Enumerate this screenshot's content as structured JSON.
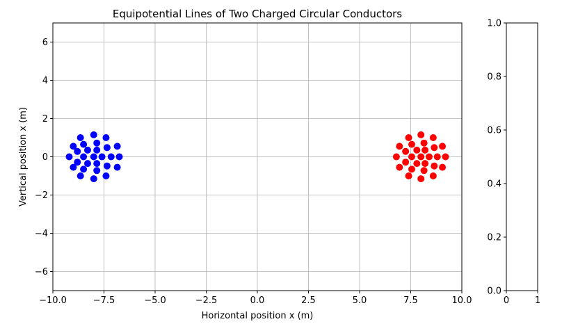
{
  "chart_data": [
    {
      "type": "scatter",
      "title": "Equipotential Lines of Two Charged Circular Conductors",
      "xlabel": "Horizontal position x (m)",
      "ylabel": "Vertical position x (m)",
      "xlim": [
        -10,
        10
      ],
      "ylim": [
        -7,
        7
      ],
      "xticks": [
        -10.0,
        -7.5,
        -5.0,
        -2.5,
        0.0,
        2.5,
        5.0,
        7.5,
        10.0
      ],
      "xtick_labels": [
        "−10.0",
        "−7.5",
        "−5.0",
        "−2.5",
        "0.0",
        "2.5",
        "5.0",
        "7.5",
        "10.0"
      ],
      "yticks": [
        -6,
        -4,
        -2,
        0,
        2,
        4,
        6
      ],
      "ytick_labels": [
        "−6",
        "−4",
        "−2",
        "0",
        "2",
        "4",
        "6"
      ],
      "grid": true,
      "series": [
        {
          "color": "#0000ff",
          "points": [
            [
              -9.2,
              0.0
            ],
            [
              -9.0,
              0.55
            ],
            [
              -9.0,
              -0.55
            ],
            [
              -8.8,
              0.28
            ],
            [
              -8.8,
              -0.28
            ],
            [
              -8.65,
              1.0
            ],
            [
              -8.65,
              -1.0
            ],
            [
              -8.5,
              0.65
            ],
            [
              -8.5,
              -0.65
            ],
            [
              -8.5,
              0.0
            ],
            [
              -8.3,
              0.35
            ],
            [
              -8.3,
              -0.35
            ],
            [
              -8.0,
              1.15
            ],
            [
              -8.0,
              -1.15
            ],
            [
              -8.0,
              0.0
            ],
            [
              -7.85,
              0.72
            ],
            [
              -7.85,
              -0.72
            ],
            [
              -7.85,
              0.35
            ],
            [
              -7.85,
              -0.35
            ],
            [
              -7.6,
              0.0
            ],
            [
              -7.4,
              1.0
            ],
            [
              -7.4,
              -1.0
            ],
            [
              -7.35,
              0.48
            ],
            [
              -7.35,
              -0.48
            ],
            [
              -7.15,
              0.0
            ],
            [
              -6.85,
              0.55
            ],
            [
              -6.85,
              -0.55
            ],
            [
              -6.75,
              0.0
            ]
          ]
        },
        {
          "color": "#ff0000",
          "points": [
            [
              6.8,
              0.0
            ],
            [
              6.95,
              0.55
            ],
            [
              6.95,
              -0.55
            ],
            [
              7.25,
              0.28
            ],
            [
              7.25,
              -0.28
            ],
            [
              7.4,
              1.0
            ],
            [
              7.4,
              -1.0
            ],
            [
              7.55,
              0.65
            ],
            [
              7.55,
              -0.65
            ],
            [
              7.55,
              0.0
            ],
            [
              7.8,
              0.35
            ],
            [
              7.8,
              -0.35
            ],
            [
              8.0,
              1.15
            ],
            [
              8.0,
              -1.15
            ],
            [
              8.0,
              0.0
            ],
            [
              8.15,
              0.72
            ],
            [
              8.15,
              -0.72
            ],
            [
              8.2,
              0.35
            ],
            [
              8.2,
              -0.35
            ],
            [
              8.4,
              0.0
            ],
            [
              8.6,
              1.0
            ],
            [
              8.6,
              -1.0
            ],
            [
              8.65,
              0.48
            ],
            [
              8.65,
              -0.48
            ],
            [
              8.8,
              0.0
            ],
            [
              9.05,
              0.55
            ],
            [
              9.05,
              -0.55
            ],
            [
              9.2,
              0.0
            ]
          ]
        }
      ]
    },
    {
      "type": "scatter",
      "title": "",
      "xlim": [
        0,
        1
      ],
      "ylim": [
        0,
        1
      ],
      "xticks": [
        0,
        1
      ],
      "xtick_labels": [
        "0",
        "1"
      ],
      "yticks": [
        0.0,
        0.2,
        0.4,
        0.6,
        0.8,
        1.0
      ],
      "ytick_labels": [
        "0.0",
        "0.2",
        "0.4",
        "0.6",
        "0.8",
        "1.0"
      ],
      "grid": false,
      "series": []
    }
  ]
}
